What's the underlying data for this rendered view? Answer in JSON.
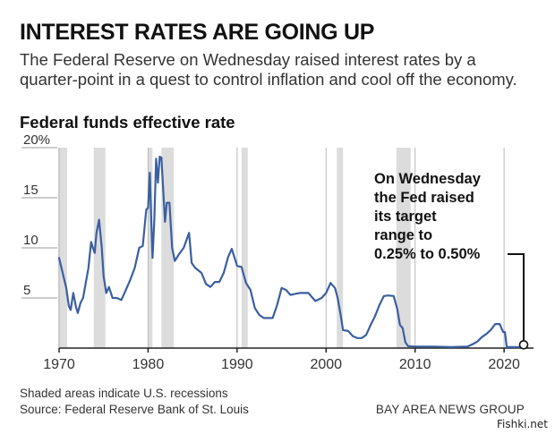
{
  "header": {
    "title": "INTEREST RATES ARE GOING UP",
    "subtitle": "The Federal Reserve on Wednesday raised interest rates by a quarter-point in a quest to control inflation and cool off the economy."
  },
  "footer": {
    "note": "Shaded areas indicate U.S. recessions",
    "source": "Source: Federal Reserve Bank of St. Louis",
    "credit": "BAY AREA NEWS GROUP",
    "watermark": "Fishki.net"
  },
  "colors": {
    "line": "#3b5fa0",
    "recession": "#dcdcdc",
    "axis": "#222222"
  },
  "chart_data": {
    "type": "line",
    "title": "Federal funds effective rate",
    "xlabel": "",
    "ylabel": "",
    "xlim": [
      1970,
      2022.3
    ],
    "ylim": [
      0,
      20
    ],
    "x_ticks": [
      1970,
      1980,
      1990,
      2000,
      2010,
      2020
    ],
    "y_ticks": [
      5,
      10,
      15,
      20
    ],
    "y_tick_labels": [
      "5",
      "10",
      "15",
      "20%"
    ],
    "grid": "vertical",
    "recessions": [
      [
        1969.9,
        1970.9
      ],
      [
        1973.9,
        1975.2
      ],
      [
        1980.0,
        1980.5
      ],
      [
        1981.5,
        1982.9
      ],
      [
        1990.5,
        1991.2
      ],
      [
        2001.2,
        2001.9
      ],
      [
        2007.9,
        2009.5
      ]
    ],
    "series": [
      {
        "x": [
          1970.0,
          1970.4,
          1970.8,
          1971.1,
          1971.3,
          1971.6,
          1971.9,
          1972.1,
          1972.4,
          1972.7,
          1973.0,
          1973.3,
          1973.6,
          1973.8,
          1974.0,
          1974.2,
          1974.5,
          1974.8,
          1975.0,
          1975.3,
          1975.6,
          1976.0,
          1976.5,
          1977.0,
          1977.5,
          1978.0,
          1978.5,
          1979.0,
          1979.4,
          1979.8,
          1980.0,
          1980.2,
          1980.35,
          1980.5,
          1980.7,
          1980.9,
          1981.1,
          1981.3,
          1981.5,
          1981.7,
          1981.9,
          1982.1,
          1982.4,
          1982.7,
          1983.0,
          1983.5,
          1984.0,
          1984.6,
          1984.9,
          1985.3,
          1986.0,
          1986.5,
          1987.0,
          1987.5,
          1988.0,
          1988.5,
          1989.0,
          1989.4,
          1990.0,
          1990.5,
          1991.0,
          1991.5,
          1992.0,
          1992.5,
          1993.0,
          1993.5,
          1994.0,
          1994.5,
          1995.0,
          1995.5,
          1996.0,
          1997.0,
          1998.0,
          1998.8,
          1999.5,
          2000.0,
          2000.5,
          2001.0,
          2001.3,
          2001.6,
          2001.9,
          2002.5,
          2003.0,
          2003.5,
          2004.0,
          2004.5,
          2005.0,
          2005.5,
          2006.0,
          2006.5,
          2007.0,
          2007.6,
          2008.0,
          2008.3,
          2008.6,
          2008.9,
          2009.2,
          2010.0,
          2012.0,
          2014.0,
          2015.9,
          2016.5,
          2017.0,
          2017.5,
          2018.0,
          2018.5,
          2019.0,
          2019.5,
          2019.9,
          2020.1,
          2020.3,
          2021.0,
          2022.0,
          2022.2
        ],
        "y": [
          9.0,
          7.5,
          6.0,
          4.2,
          3.8,
          5.5,
          4.1,
          3.5,
          4.5,
          5.0,
          6.5,
          8.0,
          10.6,
          10.0,
          9.5,
          11.5,
          12.8,
          10.0,
          7.2,
          5.5,
          6.1,
          5.0,
          5.0,
          4.8,
          5.8,
          6.8,
          8.0,
          10.0,
          10.2,
          13.8,
          14.0,
          17.5,
          13.0,
          9.0,
          12.8,
          18.9,
          16.5,
          19.1,
          19.0,
          15.8,
          12.6,
          14.5,
          14.5,
          10.0,
          8.7,
          9.4,
          10.0,
          11.5,
          8.5,
          8.0,
          7.5,
          6.4,
          6.1,
          6.6,
          6.6,
          7.5,
          9.1,
          9.9,
          8.2,
          8.1,
          6.5,
          5.8,
          4.0,
          3.3,
          3.0,
          3.0,
          3.0,
          4.3,
          6.0,
          5.8,
          5.3,
          5.5,
          5.5,
          4.7,
          5.0,
          5.5,
          6.5,
          6.0,
          5.0,
          3.5,
          1.8,
          1.7,
          1.2,
          1.0,
          1.0,
          1.3,
          2.3,
          3.2,
          4.3,
          5.2,
          5.25,
          5.2,
          3.9,
          2.3,
          2.0,
          0.6,
          0.2,
          0.15,
          0.15,
          0.1,
          0.15,
          0.4,
          0.65,
          1.1,
          1.4,
          1.8,
          2.4,
          2.4,
          1.6,
          1.6,
          0.1,
          0.1,
          0.08,
          0.33
        ]
      }
    ],
    "annotation": {
      "lines": [
        "On Wednesday",
        "the Fed raised",
        "its target",
        "range to",
        "0.25% to 0.50%"
      ],
      "x": 2022.2,
      "y": 0.33
    }
  }
}
